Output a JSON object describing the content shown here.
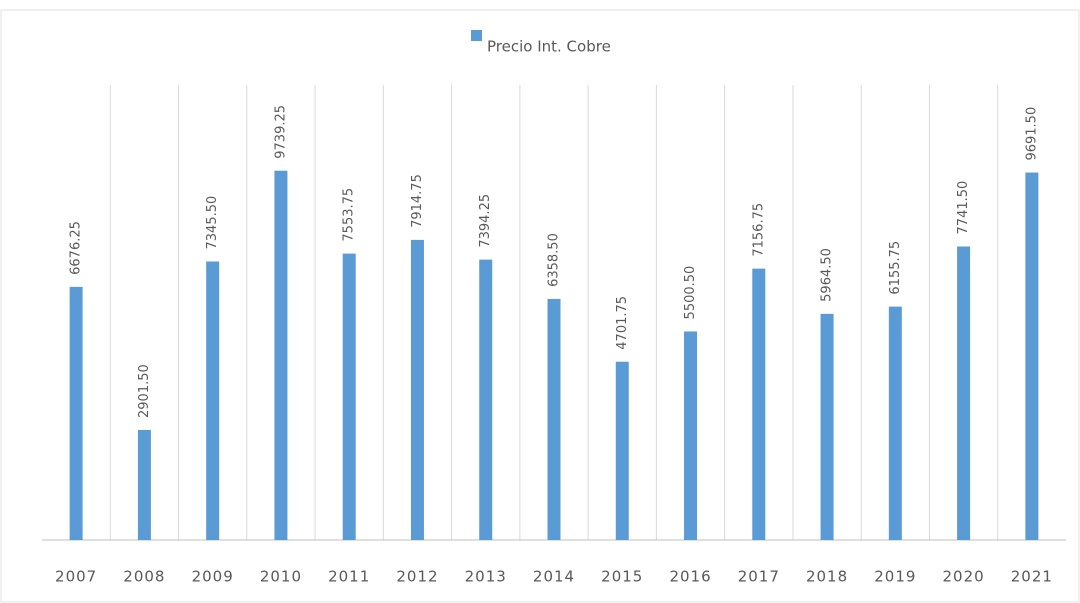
{
  "chart_data": {
    "type": "bar",
    "legend": "Precio Int. Cobre",
    "series": [
      {
        "name": "Precio Int. Cobre",
        "color": "#5b9bd5",
        "values": [
          6676.25,
          2901.5,
          7345.5,
          9739.25,
          7553.75,
          7914.75,
          7394.25,
          6358.5,
          4701.75,
          5500.5,
          7156.75,
          5964.5,
          6155.75,
          7741.5,
          9691.5
        ],
        "value_labels": [
          "6676.25",
          "2901.50",
          "7345.50",
          "9739.25",
          "7553.75",
          "7914.75",
          "7394.25",
          "6358.50",
          "4701.75",
          "5500.50",
          "7156.75",
          "5964.50",
          "6155.75",
          "7741.50",
          "9691.50"
        ]
      }
    ],
    "categories": [
      "2007",
      "2008",
      "2009",
      "2010",
      "2011",
      "2012",
      "2013",
      "2014",
      "2015",
      "2016",
      "2017",
      "2018",
      "2019",
      "2020",
      "2021"
    ],
    "ylim": [
      0,
      12000
    ],
    "legend_position": "top"
  }
}
